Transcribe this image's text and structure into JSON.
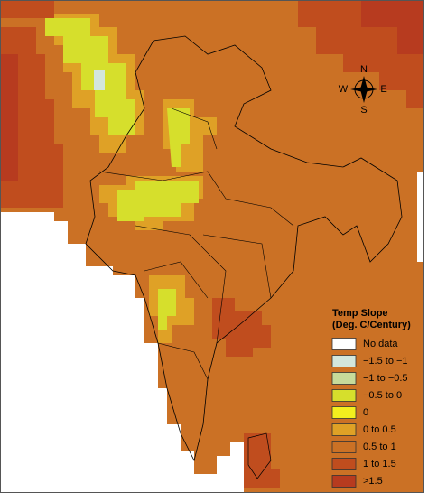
{
  "compass": {
    "north": "N",
    "south": "S",
    "west": "W",
    "east": "E"
  },
  "legend": {
    "title": "Temp Slope",
    "subtitle": "(Deg. C/Century)",
    "items": [
      {
        "label": "No data",
        "color": "#ffffff"
      },
      {
        "label": "−1.5 to −1",
        "color": "#d3e6dc"
      },
      {
        "label": "−1 to −0.5",
        "color": "#c7db9a"
      },
      {
        "label": "−0.5 to 0",
        "color": "#d6df2c"
      },
      {
        "label": "0",
        "color": "#f2ef1e"
      },
      {
        "label": "0 to 0.5",
        "color": "#dfa126"
      },
      {
        "label": "0.5 to 1",
        "color": "#cb7125"
      },
      {
        "label": "1 to 1.5",
        "color": "#c04d1e"
      },
      {
        "label": ">1.5",
        "color": "#b73b1f"
      }
    ]
  }
}
